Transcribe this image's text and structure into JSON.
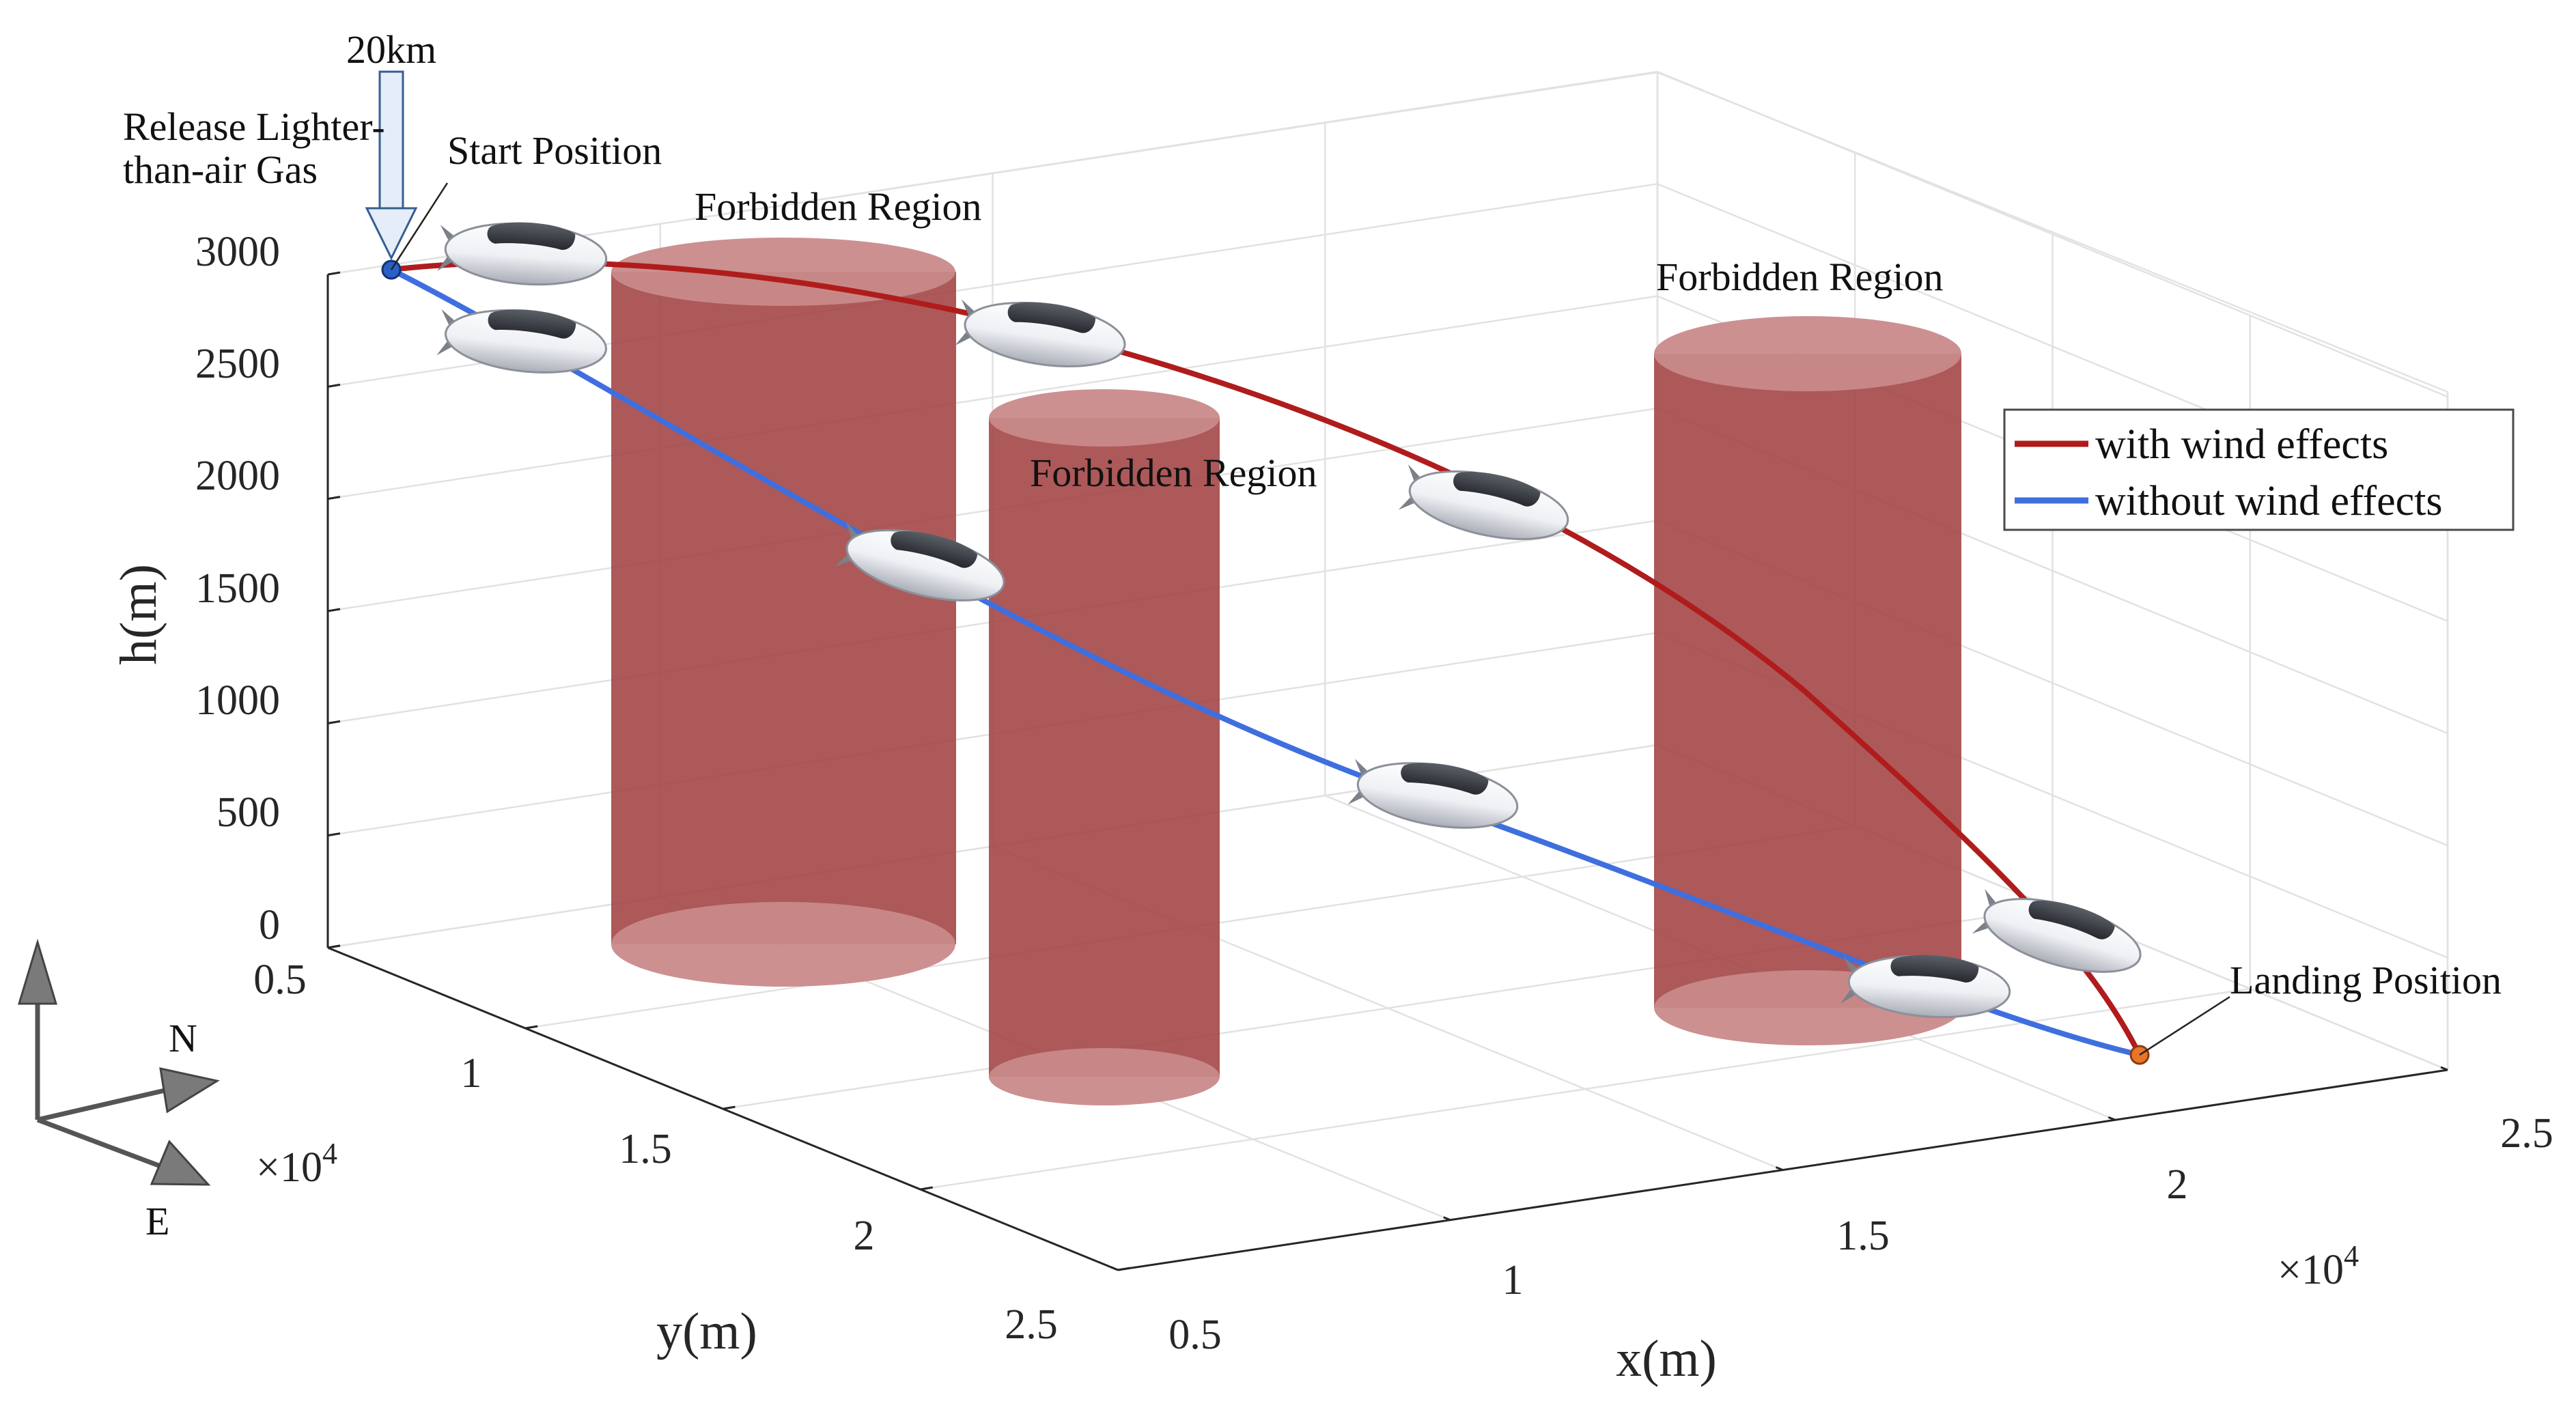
{
  "chart_data": {
    "type": "3d-line",
    "xlabel": "x(m)",
    "ylabel": "y(m)",
    "zlabel": "h(m)",
    "x_ticks": [
      "0.5",
      "1",
      "1.5",
      "2",
      "2.5"
    ],
    "x_multiplier": "×10",
    "x_multiplier_exp": "4",
    "y_ticks": [
      "0.5",
      "1",
      "1.5",
      "2",
      "2.5"
    ],
    "y_multiplier": "×10",
    "y_multiplier_exp": "4",
    "z_ticks": [
      "0",
      "500",
      "1000",
      "1500",
      "2000",
      "2500",
      "3000"
    ],
    "xlim": [
      5000,
      25000
    ],
    "ylim": [
      5000,
      25000
    ],
    "zlim": [
      0,
      3000
    ],
    "grid": true,
    "legend_position": "top-right",
    "series": [
      {
        "name": "with wind effects",
        "color": "#b01c1c"
      },
      {
        "name": "without wind effects",
        "color": "#3f6fde"
      }
    ]
  },
  "annotations": {
    "altitude": "20km",
    "release": [
      "Release Lighter-",
      "than-air Gas"
    ],
    "start": "Start Position",
    "landing": "Landing Position",
    "forbidden": [
      "Forbidden Region",
      "Forbidden Region",
      "Forbidden Region"
    ]
  },
  "compass": {
    "north": "N",
    "east": "E"
  },
  "colors": {
    "cylinder_body": "#a44747",
    "cylinder_cap": "#c98a8a",
    "start_marker": "#2b5fc8",
    "landing_marker": "#e8742a"
  }
}
